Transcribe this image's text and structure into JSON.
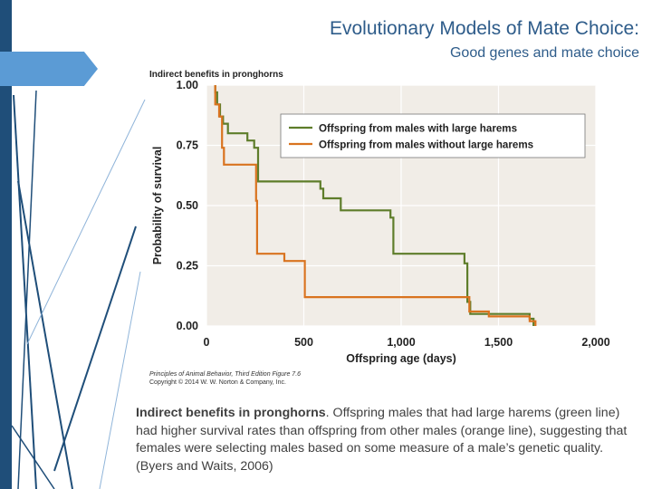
{
  "slide": {
    "title": "Evolutionary Models of Mate Choice:",
    "subtitle": "Good genes and mate choice"
  },
  "figure": {
    "header": "Indirect benefits in pronghorns",
    "credit_line1": "Principles of Animal Behavior, Third Edition Figure 7.6",
    "credit_line2": "Copyright © 2014 W. W. Norton & Company, Inc."
  },
  "caption": {
    "bold": "Indirect benefits in pronghorns",
    "text": ". Offspring males that had large harems (green line) had higher survival rates than offspring from other males (orange line), suggesting that females were selecting males based on some measure of a male’s genetic quality. (Byers and Waits, 2006)"
  },
  "colors": {
    "green": "#5e7d2a",
    "orange": "#d9731f",
    "plot_bg": "#f1ede7",
    "accent_blue": "#5b9bd5",
    "dark_blue": "#1f4e79",
    "title_blue": "#2e5c8a"
  },
  "chart_data": {
    "type": "line",
    "step": true,
    "xlabel": "Offspring age (days)",
    "ylabel": "Probability of survival",
    "xlim": [
      0,
      2000
    ],
    "ylim": [
      0,
      1
    ],
    "xticks": [
      0,
      500,
      1000,
      1500,
      2000
    ],
    "xtick_labels": [
      "0",
      "500",
      "1,000",
      "1,500",
      "2,000"
    ],
    "yticks": [
      0,
      0.25,
      0.5,
      0.75,
      1
    ],
    "ytick_labels": [
      "0.00",
      "0.25",
      "0.50",
      "0.75",
      "1.00"
    ],
    "grid": true,
    "legend_position": "top-right",
    "series": [
      {
        "name": "Offspring from males with large harems",
        "color": "#5e7d2a",
        "points": [
          [
            45,
            1.0
          ],
          [
            45,
            0.97
          ],
          [
            55,
            0.97
          ],
          [
            55,
            0.92
          ],
          [
            70,
            0.92
          ],
          [
            70,
            0.87
          ],
          [
            85,
            0.87
          ],
          [
            85,
            0.84
          ],
          [
            110,
            0.84
          ],
          [
            110,
            0.8
          ],
          [
            210,
            0.8
          ],
          [
            210,
            0.77
          ],
          [
            245,
            0.77
          ],
          [
            245,
            0.74
          ],
          [
            265,
            0.74
          ],
          [
            265,
            0.6
          ],
          [
            585,
            0.6
          ],
          [
            585,
            0.57
          ],
          [
            600,
            0.57
          ],
          [
            600,
            0.53
          ],
          [
            690,
            0.53
          ],
          [
            690,
            0.48
          ],
          [
            945,
            0.48
          ],
          [
            945,
            0.45
          ],
          [
            960,
            0.45
          ],
          [
            960,
            0.3
          ],
          [
            1325,
            0.3
          ],
          [
            1325,
            0.26
          ],
          [
            1340,
            0.26
          ],
          [
            1340,
            0.1
          ],
          [
            1355,
            0.1
          ],
          [
            1355,
            0.05
          ],
          [
            1660,
            0.05
          ],
          [
            1660,
            0.03
          ],
          [
            1680,
            0.03
          ],
          [
            1680,
            0.0
          ]
        ]
      },
      {
        "name": "Offspring from males without large harems",
        "color": "#d9731f",
        "points": [
          [
            45,
            1.0
          ],
          [
            45,
            0.92
          ],
          [
            65,
            0.92
          ],
          [
            65,
            0.87
          ],
          [
            80,
            0.87
          ],
          [
            80,
            0.74
          ],
          [
            90,
            0.74
          ],
          [
            90,
            0.67
          ],
          [
            255,
            0.67
          ],
          [
            255,
            0.52
          ],
          [
            260,
            0.52
          ],
          [
            260,
            0.3
          ],
          [
            400,
            0.3
          ],
          [
            400,
            0.27
          ],
          [
            505,
            0.27
          ],
          [
            505,
            0.12
          ],
          [
            1350,
            0.12
          ],
          [
            1350,
            0.06
          ],
          [
            1450,
            0.06
          ],
          [
            1450,
            0.04
          ],
          [
            1660,
            0.04
          ],
          [
            1660,
            0.02
          ],
          [
            1690,
            0.02
          ],
          [
            1690,
            0.0
          ]
        ]
      }
    ]
  }
}
